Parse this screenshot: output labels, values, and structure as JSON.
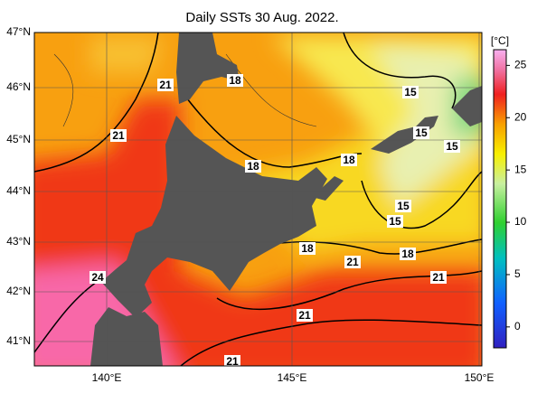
{
  "title": "Daily SSTs 30 Aug. 2022.",
  "lat_labels": [
    "47°N",
    "46°N",
    "45°N",
    "44°N",
    "43°N",
    "42°N",
    "41°N"
  ],
  "lon_labels": [
    "140°E",
    "145°E",
    "150°E"
  ],
  "contour_labels": [
    "21",
    "18",
    "21",
    "18",
    "18",
    "15",
    "15",
    "15",
    "15",
    "15",
    "18",
    "18",
    "21",
    "21",
    "24",
    "21",
    "21"
  ],
  "colorbar": {
    "unit": "[°C]",
    "ticks": [
      0,
      5,
      10,
      15,
      20,
      25
    ],
    "range": [
      -2,
      26.5
    ]
  }
}
